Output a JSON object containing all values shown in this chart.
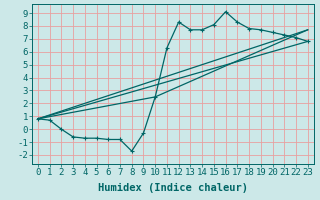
{
  "xlabel": "Humidex (Indice chaleur)",
  "bg_color": "#cce8e8",
  "grid_color": "#e8a0a0",
  "line_color": "#006666",
  "xlim": [
    -0.5,
    23.5
  ],
  "ylim": [
    -2.7,
    9.7
  ],
  "xticks": [
    0,
    1,
    2,
    3,
    4,
    5,
    6,
    7,
    8,
    9,
    10,
    11,
    12,
    13,
    14,
    15,
    16,
    17,
    18,
    19,
    20,
    21,
    22,
    23
  ],
  "yticks": [
    -2,
    -1,
    0,
    1,
    2,
    3,
    4,
    5,
    6,
    7,
    8,
    9
  ],
  "series1_x": [
    0,
    1,
    2,
    3,
    4,
    5,
    6,
    7,
    8,
    9,
    10,
    11,
    12,
    13,
    14,
    15,
    16,
    17,
    18,
    19,
    20,
    21,
    22,
    23
  ],
  "series1_y": [
    0.8,
    0.7,
    0.0,
    -0.6,
    -0.7,
    -0.7,
    -0.8,
    -0.8,
    -1.7,
    -0.3,
    2.5,
    6.3,
    8.3,
    7.7,
    7.7,
    8.1,
    9.1,
    8.3,
    7.8,
    7.7,
    7.5,
    7.3,
    7.1,
    6.8
  ],
  "series2_x": [
    0,
    23
  ],
  "series2_y": [
    0.8,
    6.8
  ],
  "series3_x": [
    0,
    10,
    23
  ],
  "series3_y": [
    0.8,
    2.5,
    7.7
  ],
  "series4_x": [
    0,
    23
  ],
  "series4_y": [
    0.8,
    7.7
  ],
  "font_family": "monospace",
  "xlabel_fontsize": 7.5,
  "tick_fontsize": 6.5
}
